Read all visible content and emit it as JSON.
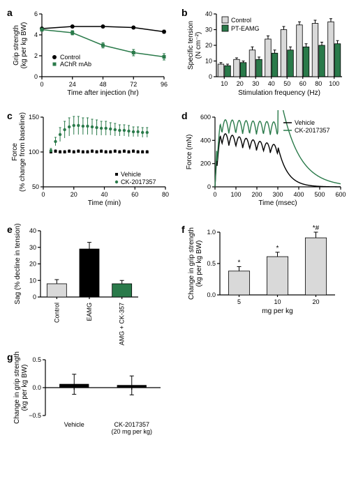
{
  "colors": {
    "black": "#000000",
    "green": "#2a7a4a",
    "gray": "#d9d9d9",
    "white": "#ffffff"
  },
  "panel_a": {
    "label": "a",
    "xlabel": "Time after injection (hr)",
    "ylabel": "Grip strength\n(kg per kg BW)",
    "xlim": [
      0,
      96
    ],
    "ylim": [
      0,
      6
    ],
    "xticks": [
      0,
      24,
      48,
      72,
      96
    ],
    "yticks": [
      0,
      2,
      4,
      6
    ],
    "series": [
      {
        "name": "Control",
        "color": "#000000",
        "x": [
          0,
          24,
          48,
          72,
          96
        ],
        "y": [
          4.6,
          4.8,
          4.8,
          4.7,
          4.3
        ],
        "err": [
          0.1,
          0.1,
          0.1,
          0.1,
          0.15
        ]
      },
      {
        "name": "AChR mAb",
        "color": "#2a7a4a",
        "x": [
          0,
          24,
          48,
          72,
          96
        ],
        "y": [
          4.5,
          4.2,
          3.0,
          2.3,
          1.9
        ],
        "err": [
          0.15,
          0.2,
          0.25,
          0.3,
          0.3
        ]
      }
    ],
    "legend": [
      {
        "label": "Control",
        "marker": "circle",
        "color": "#000000"
      },
      {
        "label": "AChR mAb",
        "marker": "square",
        "color": "#2a7a4a"
      }
    ]
  },
  "panel_b": {
    "label": "b",
    "xlabel": "Stimulation frequency (Hz)",
    "ylabel": "Specific tension\n(N cm⁻²)",
    "categories": [
      "10",
      "20",
      "30",
      "40",
      "50",
      "60",
      "80",
      "100"
    ],
    "ylim": [
      0,
      40
    ],
    "yticks": [
      0,
      10,
      20,
      30,
      40
    ],
    "bar_width": 0.38,
    "series": [
      {
        "name": "Control",
        "color": "#d9d9d9",
        "values": [
          8,
          11,
          17,
          24,
          30,
          33,
          34,
          35
        ],
        "err": [
          1,
          1,
          2,
          2,
          2,
          2,
          2,
          2
        ]
      },
      {
        "name": "PT-EAMG",
        "color": "#2a7a4a",
        "values": [
          7,
          9,
          11,
          15,
          17,
          19,
          20,
          21
        ],
        "err": [
          1,
          1,
          1.5,
          2,
          2,
          2,
          2,
          2
        ]
      }
    ]
  },
  "panel_c": {
    "label": "c",
    "xlabel": "Time (min)",
    "ylabel": "Force\n(% change from baseline)",
    "xlim": [
      0,
      80
    ],
    "ylim": [
      50,
      150
    ],
    "xticks": [
      0,
      20,
      40,
      60,
      80
    ],
    "yticks": [
      50,
      100,
      150
    ],
    "series": [
      {
        "name": "Vehicle",
        "color": "#000000",
        "marker": "square",
        "x": [
          5,
          8,
          11,
          14,
          17,
          20,
          23,
          26,
          29,
          32,
          35,
          38,
          41,
          44,
          47,
          50,
          53,
          56,
          59,
          62,
          65,
          68
        ],
        "y": [
          100,
          101,
          100,
          100,
          101,
          100,
          101,
          100,
          100,
          101,
          100,
          101,
          100,
          100,
          101,
          100,
          101,
          100,
          101,
          100,
          100,
          100
        ],
        "err": [
          2,
          2,
          2,
          2,
          2,
          2,
          2,
          2,
          2,
          2,
          2,
          2,
          2,
          2,
          2,
          2,
          2,
          2,
          2,
          2,
          2,
          2
        ]
      },
      {
        "name": "CK-2017357",
        "color": "#2a7a4a",
        "marker": "circle",
        "x": [
          5,
          8,
          11,
          14,
          17,
          20,
          23,
          26,
          29,
          32,
          35,
          38,
          41,
          44,
          47,
          50,
          53,
          56,
          59,
          62,
          65,
          68
        ],
        "y": [
          102,
          115,
          125,
          132,
          136,
          138,
          138,
          137,
          137,
          136,
          135,
          134,
          134,
          133,
          132,
          131,
          131,
          130,
          129,
          129,
          128,
          128
        ],
        "err": [
          3,
          6,
          10,
          12,
          13,
          13,
          13,
          12,
          12,
          11,
          11,
          10,
          10,
          9,
          9,
          8,
          8,
          8,
          7,
          7,
          7,
          7
        ]
      }
    ],
    "legend": [
      {
        "label": "Vehicle",
        "marker": "square",
        "color": "#000000"
      },
      {
        "label": "CK-2017357",
        "marker": "circle",
        "color": "#2a7a4a"
      }
    ]
  },
  "panel_d": {
    "label": "d",
    "xlabel": "Time (msec)",
    "ylabel": "Force (mN)",
    "xlim": [
      0,
      600
    ],
    "ylim": [
      0,
      600
    ],
    "xticks": [
      0,
      100,
      200,
      300,
      400,
      500,
      600
    ],
    "yticks": [
      0,
      200,
      400,
      600
    ],
    "legend": [
      {
        "label": "Vehicle",
        "color": "#000000"
      },
      {
        "label": "CK-2017357",
        "color": "#2a7a4a"
      }
    ]
  },
  "panel_e": {
    "label": "e",
    "ylabel": "Sag (% decline in tension)",
    "ylim": [
      0,
      40
    ],
    "yticks": [
      0,
      10,
      20,
      30,
      40
    ],
    "categories": [
      "Control",
      "EAMG",
      "EAMG + CK-357"
    ],
    "colors": [
      "#d9d9d9",
      "#000000",
      "#2a7a4a"
    ],
    "values": [
      8,
      29,
      8
    ],
    "err": [
      2.5,
      4,
      2
    ]
  },
  "panel_f": {
    "label": "f",
    "xlabel": "mg per kg",
    "ylabel": "Change in grip strength\n(kg per kg BW)",
    "ylim": [
      0,
      1.0
    ],
    "yticks": [
      0,
      0.5,
      1.0
    ],
    "categories": [
      "5",
      "10",
      "20"
    ],
    "values": [
      0.38,
      0.61,
      0.91
    ],
    "err": [
      0.07,
      0.07,
      0.09
    ],
    "annotations": [
      "*",
      "*",
      "*#"
    ],
    "bar_color": "#d9d9d9"
  },
  "panel_g": {
    "label": "g",
    "ylabel": "Change in grip strength\n(kg per kg BW)",
    "ylim": [
      -0.5,
      0.5
    ],
    "yticks": [
      -0.5,
      0,
      0.5
    ],
    "categories": [
      "Vehicle",
      "CK-2017357\n(20 mg per kg)"
    ],
    "values": [
      0.06,
      0.04
    ],
    "err": [
      0.18,
      0.17
    ],
    "bar_color": "#000000"
  }
}
